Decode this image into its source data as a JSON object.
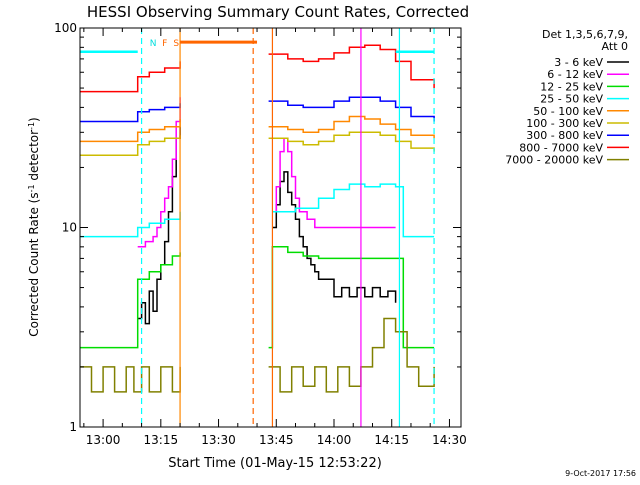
{
  "chart_data": {
    "type": "line",
    "title": "HESSI Observing Summary Count Rates, Corrected",
    "xlabel": "Start Time (01-May-15 12:53:22)",
    "ylabel_parts": [
      "Corrected Count Rate (s",
      "-1",
      " detector",
      "-1",
      ")"
    ],
    "yscale": "log",
    "ylim": [
      1,
      100
    ],
    "y_ticks": [
      "1",
      "10",
      "100"
    ],
    "xlim_min": [
      -6,
      93
    ],
    "x_ticks": [
      "13:00",
      "13:15",
      "13:30",
      "13:45",
      "14:00",
      "14:15",
      "14:30"
    ],
    "x_tick_minutes": [
      0,
      15,
      30,
      45,
      60,
      75,
      90
    ],
    "legend": {
      "header": [
        "Det 1,3,5,6,7,9,",
        "Att 0"
      ],
      "placement": "right"
    },
    "series": [
      {
        "name": "3 - 6 keV",
        "color": "#000000",
        "points": [
          [
            9,
            3.5
          ],
          [
            10,
            4.2
          ],
          [
            11,
            3.3
          ],
          [
            12,
            4.8
          ],
          [
            13,
            3.8
          ],
          [
            14,
            5.5
          ],
          [
            15,
            6.5
          ],
          [
            16,
            8.5
          ],
          [
            17,
            12
          ],
          [
            18,
            18
          ],
          [
            19,
            28
          ],
          [
            20,
            32
          ]
        ],
        "points2": [
          [
            44,
            10
          ],
          [
            45,
            13
          ],
          [
            46,
            17
          ],
          [
            47,
            19
          ],
          [
            48,
            15
          ],
          [
            49,
            13
          ],
          [
            50,
            11
          ],
          [
            51,
            9
          ],
          [
            52,
            8
          ],
          [
            53,
            7
          ],
          [
            54,
            6.5
          ],
          [
            55,
            6
          ],
          [
            56,
            5.5
          ],
          [
            58,
            5.5
          ],
          [
            60,
            4.5
          ],
          [
            62,
            5
          ],
          [
            64,
            4.5
          ],
          [
            66,
            5
          ],
          [
            68,
            4.5
          ],
          [
            70,
            5
          ],
          [
            72,
            4.5
          ],
          [
            74,
            4.8
          ],
          [
            76,
            4.2
          ]
        ]
      },
      {
        "name": "6 - 12 keV",
        "color": "#ff00ff",
        "points": [
          [
            9,
            8
          ],
          [
            11,
            8.5
          ],
          [
            13,
            9
          ],
          [
            14,
            10
          ],
          [
            15,
            12
          ],
          [
            16,
            14
          ],
          [
            17,
            16
          ],
          [
            18,
            22
          ],
          [
            19,
            34
          ],
          [
            20,
            45
          ]
        ],
        "points2": [
          [
            44,
            12
          ],
          [
            45,
            16
          ],
          [
            46,
            24
          ],
          [
            47,
            28
          ],
          [
            48,
            24
          ],
          [
            49,
            18
          ],
          [
            50,
            14
          ],
          [
            51,
            12
          ],
          [
            53,
            11
          ],
          [
            55,
            10
          ],
          [
            58,
            10
          ],
          [
            62,
            10
          ],
          [
            66,
            10
          ],
          [
            70,
            10
          ],
          [
            74,
            10
          ],
          [
            76,
            10
          ]
        ]
      },
      {
        "name": "12 - 25 keV",
        "color": "#00dd00",
        "points": [
          [
            -6,
            2.5
          ],
          [
            0,
            2.5
          ],
          [
            4,
            2.5
          ],
          [
            9,
            5.5
          ],
          [
            12,
            6
          ],
          [
            15,
            6.5
          ],
          [
            18,
            7.2
          ],
          [
            20,
            7.5
          ]
        ],
        "points2": [
          [
            43,
            2.5
          ],
          [
            44,
            8
          ],
          [
            48,
            7.5
          ],
          [
            52,
            7.2
          ],
          [
            56,
            7
          ],
          [
            60,
            7
          ],
          [
            64,
            7
          ],
          [
            68,
            7
          ],
          [
            72,
            7
          ],
          [
            76,
            7
          ],
          [
            78,
            2.5
          ],
          [
            86,
            2.5
          ]
        ]
      },
      {
        "name": "25 - 50 keV",
        "color": "#00ffff",
        "points": [
          [
            -6,
            9
          ],
          [
            0,
            9
          ],
          [
            4,
            9
          ],
          [
            8,
            9
          ],
          [
            9,
            10
          ],
          [
            12,
            10.5
          ],
          [
            16,
            11
          ],
          [
            20,
            12
          ]
        ],
        "points2": [
          [
            44,
            12
          ],
          [
            50,
            12.5
          ],
          [
            56,
            14
          ],
          [
            60,
            15.5
          ],
          [
            64,
            16.5
          ],
          [
            68,
            16
          ],
          [
            72,
            16.5
          ],
          [
            74,
            16.5
          ],
          [
            76,
            16
          ],
          [
            78,
            9
          ],
          [
            86,
            9
          ]
        ]
      },
      {
        "name": "50 - 100 keV",
        "color": "#ff8800",
        "points": [
          [
            -6,
            27
          ],
          [
            0,
            27
          ],
          [
            4,
            27
          ],
          [
            8,
            27
          ],
          [
            9,
            30
          ],
          [
            12,
            31
          ],
          [
            16,
            32
          ],
          [
            20,
            35
          ]
        ],
        "points2": [
          [
            43,
            32
          ],
          [
            48,
            31
          ],
          [
            52,
            30
          ],
          [
            56,
            31
          ],
          [
            60,
            34
          ],
          [
            64,
            36
          ],
          [
            68,
            35
          ],
          [
            72,
            33
          ],
          [
            76,
            31
          ],
          [
            80,
            29
          ],
          [
            86,
            28
          ]
        ]
      },
      {
        "name": "100 - 300 keV",
        "color": "#ccbb00",
        "points": [
          [
            -6,
            23
          ],
          [
            0,
            23
          ],
          [
            4,
            23
          ],
          [
            8,
            23
          ],
          [
            9,
            26
          ],
          [
            12,
            27
          ],
          [
            16,
            28
          ],
          [
            20,
            29
          ]
        ],
        "points2": [
          [
            43,
            28
          ],
          [
            48,
            27
          ],
          [
            52,
            26
          ],
          [
            56,
            27
          ],
          [
            60,
            29
          ],
          [
            64,
            30
          ],
          [
            68,
            30
          ],
          [
            72,
            29
          ],
          [
            76,
            27
          ],
          [
            80,
            25
          ],
          [
            86,
            24
          ]
        ]
      },
      {
        "name": "300 - 800 keV",
        "color": "#0000ff",
        "points": [
          [
            -6,
            34
          ],
          [
            0,
            34
          ],
          [
            4,
            34
          ],
          [
            8,
            34
          ],
          [
            9,
            38
          ],
          [
            12,
            39
          ],
          [
            16,
            40
          ],
          [
            20,
            42
          ]
        ],
        "points2": [
          [
            43,
            43
          ],
          [
            48,
            41
          ],
          [
            52,
            40
          ],
          [
            56,
            40
          ],
          [
            60,
            43
          ],
          [
            64,
            45
          ],
          [
            68,
            45
          ],
          [
            72,
            43
          ],
          [
            76,
            40
          ],
          [
            80,
            36
          ],
          [
            86,
            34
          ]
        ]
      },
      {
        "name": "800 - 7000 keV",
        "color": "#ff0000",
        "points": [
          [
            -6,
            48
          ],
          [
            0,
            48
          ],
          [
            4,
            48
          ],
          [
            8,
            48
          ],
          [
            9,
            57
          ],
          [
            12,
            60
          ],
          [
            16,
            63
          ],
          [
            20,
            68
          ]
        ],
        "points2": [
          [
            43,
            74
          ],
          [
            48,
            70
          ],
          [
            52,
            68
          ],
          [
            56,
            70
          ],
          [
            60,
            75
          ],
          [
            64,
            80
          ],
          [
            68,
            82
          ],
          [
            72,
            78
          ],
          [
            76,
            68
          ],
          [
            80,
            55
          ],
          [
            86,
            50
          ]
        ]
      },
      {
        "name": "7000 - 20000 keV",
        "color": "#808000",
        "points": [
          [
            -6,
            2
          ],
          [
            -3,
            1.5
          ],
          [
            0,
            2
          ],
          [
            3,
            1.5
          ],
          [
            6,
            2
          ],
          [
            8,
            1.5
          ],
          [
            10,
            2
          ],
          [
            12,
            1.5
          ],
          [
            15,
            2
          ],
          [
            18,
            1.5
          ],
          [
            20,
            2
          ]
        ],
        "points2": [
          [
            43,
            2
          ],
          [
            46,
            1.5
          ],
          [
            49,
            2
          ],
          [
            52,
            1.6
          ],
          [
            55,
            2
          ],
          [
            58,
            1.5
          ],
          [
            61,
            2
          ],
          [
            64,
            1.6
          ],
          [
            67,
            2
          ],
          [
            70,
            2.5
          ],
          [
            73,
            3.5
          ],
          [
            76,
            3
          ],
          [
            79,
            2
          ],
          [
            82,
            1.6
          ],
          [
            86,
            2
          ]
        ]
      }
    ],
    "flags": {
      "orange_bar": {
        "x": [
          20,
          40
        ],
        "y": 85,
        "color": "#ff6600"
      },
      "cyan_segments": [
        {
          "x": [
            -6,
            9
          ],
          "y": 76
        },
        {
          "x": [
            76,
            86
          ],
          "y": 76
        }
      ],
      "labels": [
        {
          "text": "N",
          "x": 13,
          "color": "#00dddd"
        },
        {
          "text": "F",
          "x": 16,
          "color": "#ff6600"
        },
        {
          "text": "S",
          "x": 19,
          "color": "#ff6600"
        }
      ],
      "vlines_solid": [
        {
          "x": 20,
          "color": "#ff8800"
        },
        {
          "x": 44,
          "color": "#ff6600"
        },
        {
          "x": 77,
          "color": "#00ffff"
        },
        {
          "x": 67,
          "color": "#ff00ff"
        }
      ],
      "vlines_dashed": [
        {
          "x": 10,
          "color": "#00ffff"
        },
        {
          "x": 39,
          "color": "#ff6600"
        },
        {
          "x": 86,
          "color": "#00ffff"
        }
      ]
    }
  },
  "footer": {
    "timestamp": "9-Oct-2017 17:56"
  }
}
